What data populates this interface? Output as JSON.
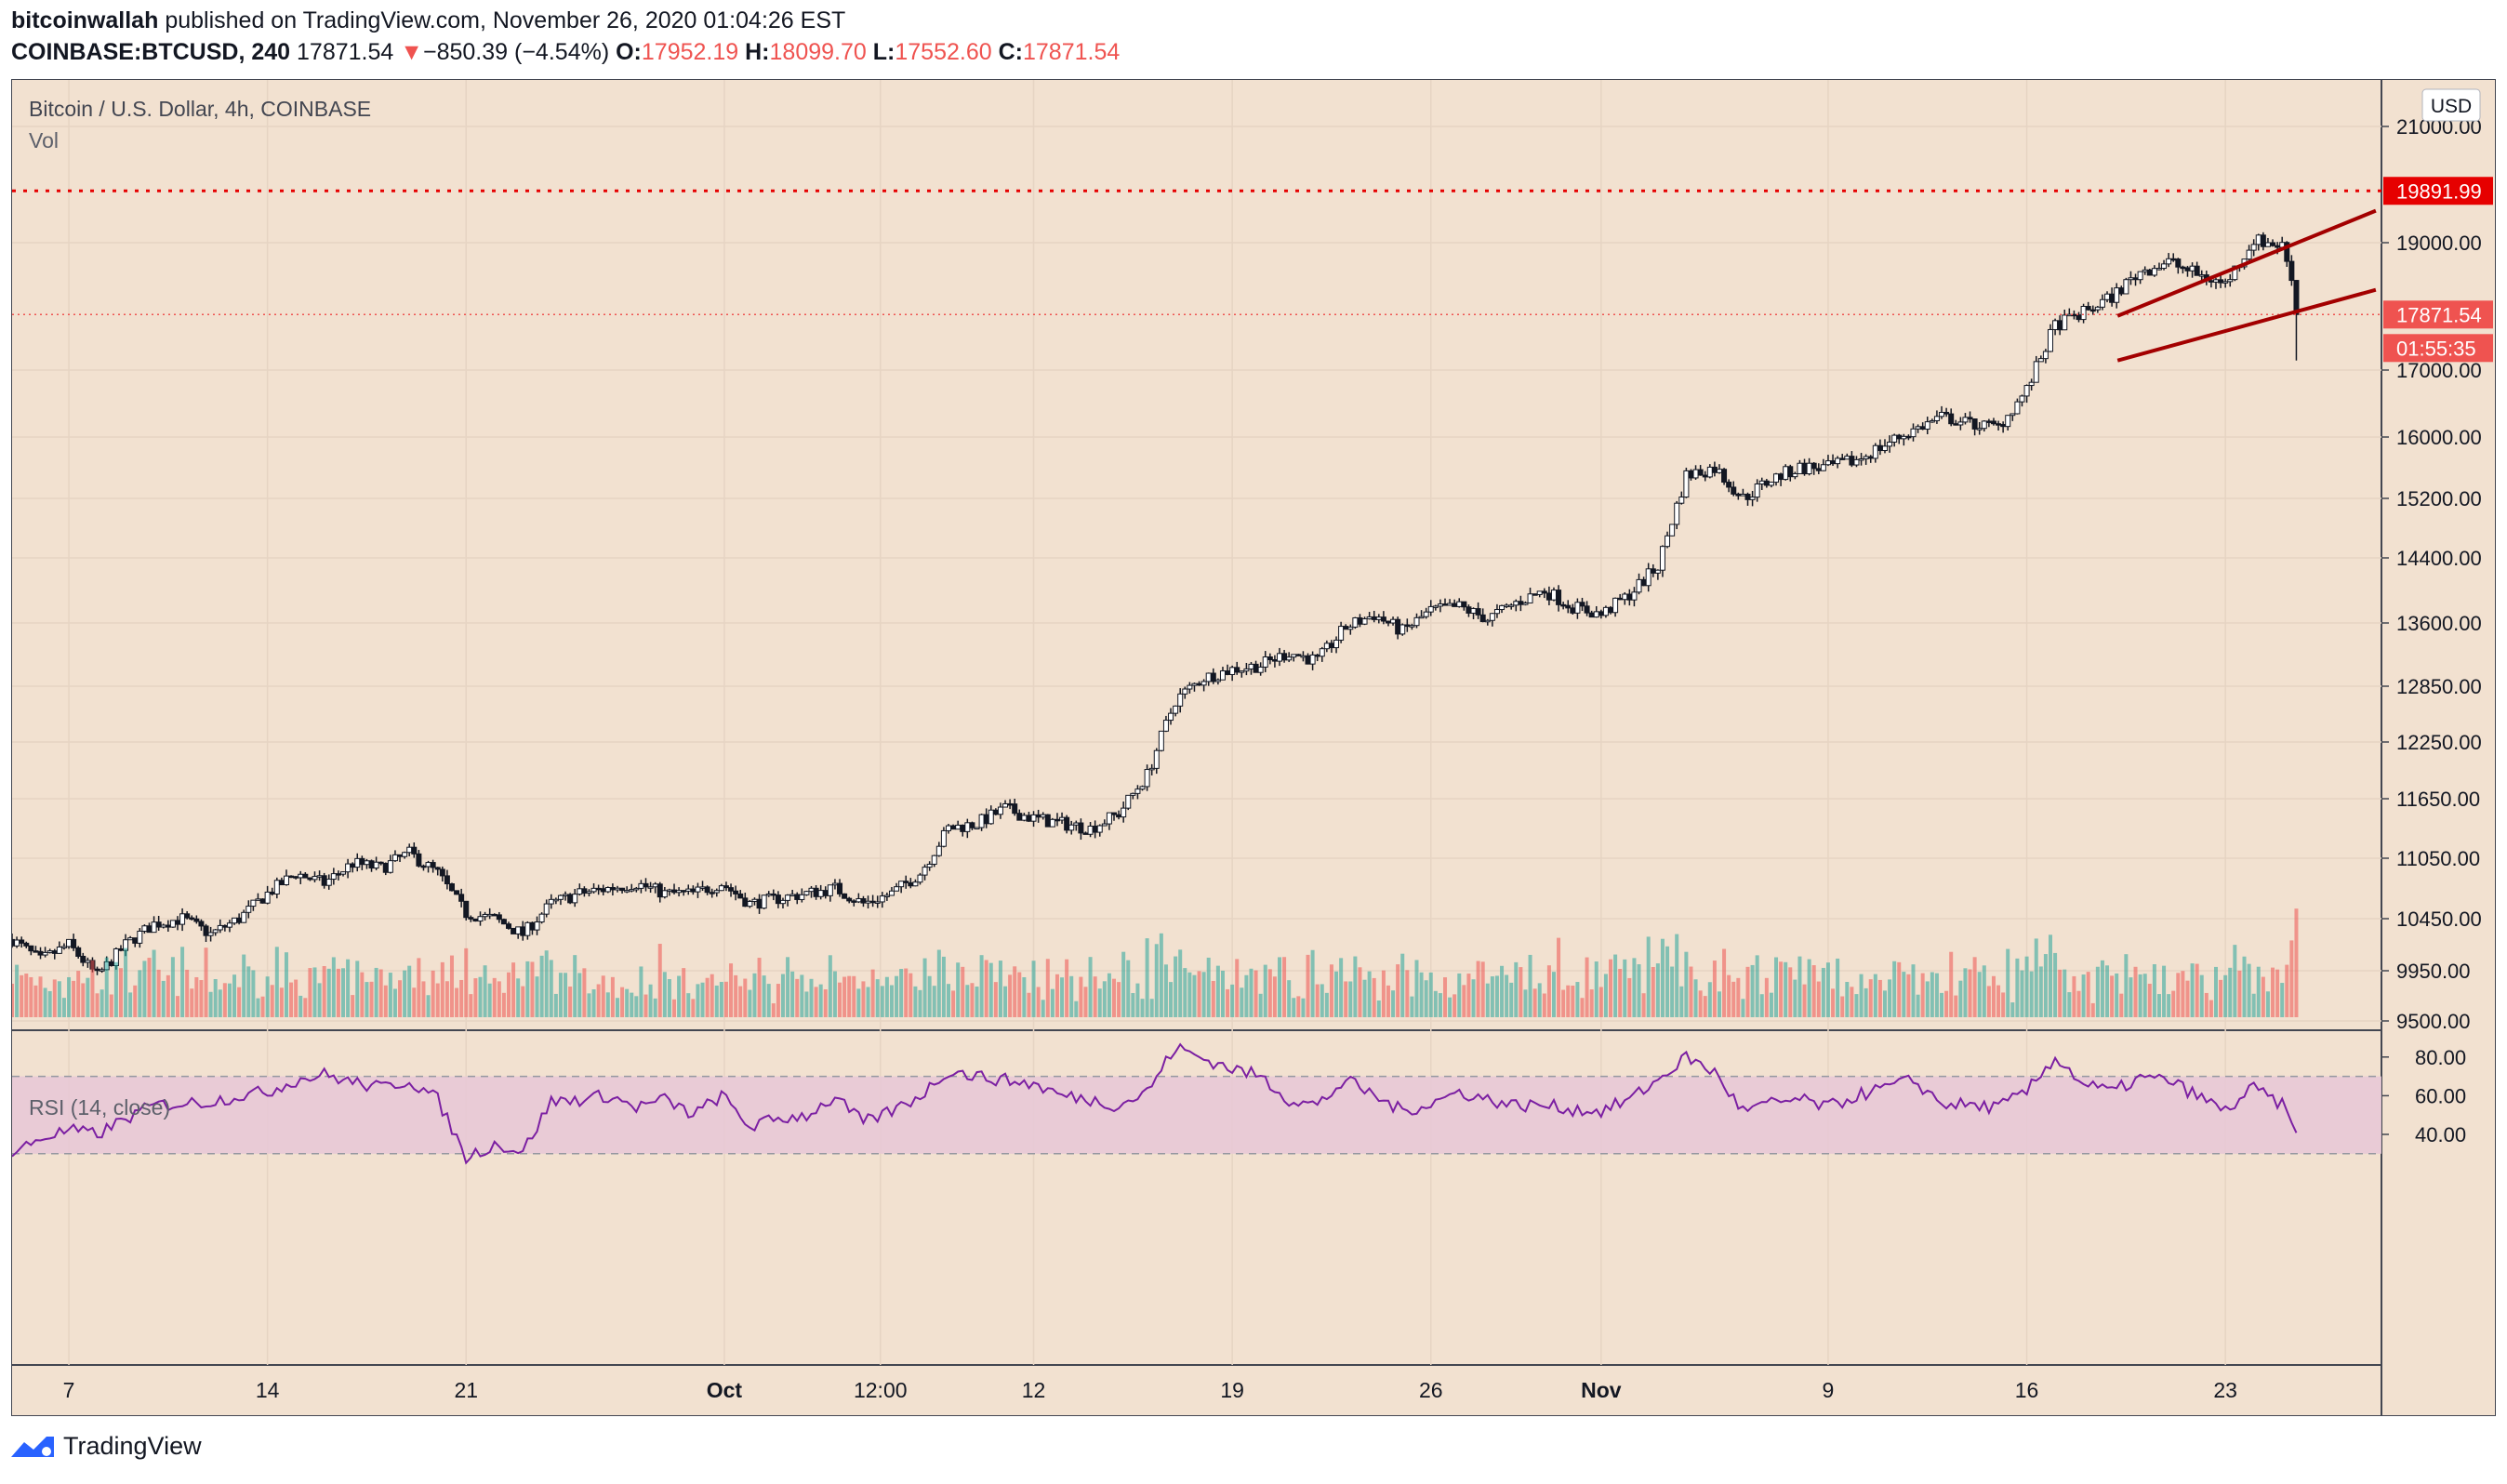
{
  "header": {
    "author": "bitcoinwallah",
    "published_text": "published on TradingView.com, November 26, 2020 01:04:26 EST",
    "symbol": "COINBASE:BTCUSD, 240",
    "last": "17871.54",
    "change_arrow": "▼",
    "change": "−850.39 (−4.54%)",
    "o_label": "O:",
    "o": "17952.19",
    "h_label": "H:",
    "h": "18099.70",
    "l_label": "L:",
    "l": "17552.60",
    "c_label": "C:",
    "c": "17871.54"
  },
  "legend": {
    "title": "Bitcoin / U.S. Dollar, 4h, COINBASE",
    "vol": "Vol",
    "rsi": "RSI (14, close)"
  },
  "footer": {
    "brand": "TradingView",
    "logo_icon": "tradingview-logo-icon"
  },
  "colors": {
    "background": "#f2e1d0",
    "up": "#26a69a",
    "down": "#ef5350",
    "candle": "#131722",
    "resistance": "#e60000",
    "channel": "#a30000",
    "rsi_line": "#7b1fa2",
    "rsi_band": "#e8c9d6"
  },
  "chart_data": {
    "type": "candlestick",
    "currency": "USD",
    "price_ticks": [
      21000,
      19000,
      17000,
      16000,
      15200,
      14400,
      13600,
      12850,
      12250,
      11650,
      11050,
      10450,
      9950,
      9500
    ],
    "price_tick_labels": [
      "21000.00",
      "19000.00",
      "17000.00",
      "16000.00",
      "15200.00",
      "14400.00",
      "13600.00",
      "12850.00",
      "12250.00",
      "11650.00",
      "11050.00",
      "10450.00",
      "9950.00",
      "9500.00"
    ],
    "resistance_level": 19891.99,
    "resistance_label": "19891.99",
    "last_price_label": "17871.54",
    "last_price": 17871.54,
    "countdown": "01:55:35",
    "x_tick_labels": [
      "7",
      "14",
      "21",
      "Oct",
      "12:00",
      "12",
      "19",
      "26",
      "Nov",
      "9",
      "16",
      "23"
    ],
    "x_tick_days": [
      7,
      14,
      21,
      30.1,
      35.6,
      41,
      48,
      55,
      61,
      69,
      76,
      83
    ],
    "date_range": [
      "2020-09-05",
      "2020-11-26"
    ],
    "price_path": [
      [
        5,
        10250
      ],
      [
        6,
        10050
      ],
      [
        7,
        10200
      ],
      [
        8,
        9900
      ],
      [
        9,
        10200
      ],
      [
        10,
        10400
      ],
      [
        11,
        10450
      ],
      [
        12,
        10300
      ],
      [
        13,
        10450
      ],
      [
        14,
        10700
      ],
      [
        15,
        10900
      ],
      [
        16,
        10800
      ],
      [
        17,
        11000
      ],
      [
        18,
        10950
      ],
      [
        19,
        11100
      ],
      [
        20,
        10900
      ],
      [
        21,
        10500
      ],
      [
        22,
        10450
      ],
      [
        23,
        10300
      ],
      [
        24,
        10600
      ],
      [
        25,
        10700
      ],
      [
        26,
        10750
      ],
      [
        27,
        10800
      ],
      [
        28,
        10700
      ],
      [
        29,
        10700
      ],
      [
        30,
        10800
      ],
      [
        31,
        10600
      ],
      [
        32,
        10650
      ],
      [
        33,
        10700
      ],
      [
        34,
        10750
      ],
      [
        35,
        10600
      ],
      [
        36,
        10700
      ],
      [
        37,
        10900
      ],
      [
        38,
        11350
      ],
      [
        39,
        11400
      ],
      [
        40,
        11550
      ],
      [
        41,
        11450
      ],
      [
        42,
        11400
      ],
      [
        43,
        11350
      ],
      [
        44,
        11500
      ],
      [
        45,
        11900
      ],
      [
        46,
        12700
      ],
      [
        47,
        12950
      ],
      [
        48,
        13050
      ],
      [
        49,
        13100
      ],
      [
        50,
        13250
      ],
      [
        51,
        13150
      ],
      [
        52,
        13550
      ],
      [
        53,
        13700
      ],
      [
        54,
        13500
      ],
      [
        55,
        13750
      ],
      [
        56,
        13800
      ],
      [
        57,
        13650
      ],
      [
        58,
        13850
      ],
      [
        59,
        14000
      ],
      [
        60,
        13800
      ],
      [
        61,
        13700
      ],
      [
        62,
        13950
      ],
      [
        63,
        14300
      ],
      [
        64,
        15500
      ],
      [
        65,
        15600
      ],
      [
        66,
        15200
      ],
      [
        67,
        15450
      ],
      [
        68,
        15600
      ],
      [
        69,
        15600
      ],
      [
        70,
        15700
      ],
      [
        71,
        15900
      ],
      [
        72,
        16100
      ],
      [
        73,
        16300
      ],
      [
        74,
        16200
      ],
      [
        75,
        16150
      ],
      [
        76,
        16700
      ],
      [
        77,
        17700
      ],
      [
        78,
        17900
      ],
      [
        79,
        18150
      ],
      [
        80,
        18550
      ],
      [
        81,
        18700
      ],
      [
        82,
        18500
      ],
      [
        83,
        18350
      ],
      [
        84,
        19050
      ],
      [
        85,
        18950
      ],
      [
        85.4,
        18400
      ],
      [
        85.6,
        17871.54
      ]
    ],
    "rsi": {
      "levels": [
        30,
        70
      ],
      "ticks": [
        80,
        60,
        40
      ],
      "tick_labels": [
        "80.00",
        "60.00",
        "40.00"
      ],
      "path": [
        [
          5,
          30
        ],
        [
          6,
          38
        ],
        [
          7,
          42
        ],
        [
          8,
          40
        ],
        [
          9,
          48
        ],
        [
          10,
          55
        ],
        [
          11,
          56
        ],
        [
          12,
          57
        ],
        [
          13,
          60
        ],
        [
          14,
          62
        ],
        [
          15,
          68
        ],
        [
          16,
          71
        ],
        [
          17,
          67
        ],
        [
          18,
          64
        ],
        [
          19,
          68
        ],
        [
          20,
          58
        ],
        [
          21,
          28
        ],
        [
          22,
          35
        ],
        [
          23,
          31
        ],
        [
          24,
          57
        ],
        [
          25,
          58
        ],
        [
          26,
          60
        ],
        [
          27,
          54
        ],
        [
          28,
          58
        ],
        [
          29,
          50
        ],
        [
          30,
          60
        ],
        [
          31,
          44
        ],
        [
          32,
          48
        ],
        [
          33,
          50
        ],
        [
          34,
          59
        ],
        [
          35,
          46
        ],
        [
          36,
          52
        ],
        [
          37,
          60
        ],
        [
          38,
          73
        ],
        [
          39,
          70
        ],
        [
          40,
          68
        ],
        [
          41,
          66
        ],
        [
          42,
          60
        ],
        [
          43,
          58
        ],
        [
          44,
          55
        ],
        [
          45,
          62
        ],
        [
          46,
          85
        ],
        [
          47,
          79
        ],
        [
          48,
          74
        ],
        [
          49,
          70
        ],
        [
          50,
          58
        ],
        [
          51,
          55
        ],
        [
          52,
          68
        ],
        [
          53,
          60
        ],
        [
          54,
          52
        ],
        [
          55,
          56
        ],
        [
          56,
          62
        ],
        [
          57,
          58
        ],
        [
          58,
          55
        ],
        [
          59,
          55
        ],
        [
          60,
          53
        ],
        [
          61,
          52
        ],
        [
          62,
          58
        ],
        [
          63,
          68
        ],
        [
          64,
          80
        ],
        [
          65,
          72
        ],
        [
          66,
          52
        ],
        [
          67,
          56
        ],
        [
          68,
          58
        ],
        [
          69,
          54
        ],
        [
          70,
          60
        ],
        [
          71,
          64
        ],
        [
          72,
          68
        ],
        [
          73,
          56
        ],
        [
          74,
          55
        ],
        [
          75,
          54
        ],
        [
          76,
          62
        ],
        [
          77,
          80
        ],
        [
          78,
          66
        ],
        [
          79,
          62
        ],
        [
          80,
          69
        ],
        [
          81,
          68
        ],
        [
          82,
          60
        ],
        [
          83,
          52
        ],
        [
          84,
          64
        ],
        [
          85,
          55
        ],
        [
          85.6,
          38
        ]
      ]
    },
    "channel": {
      "upper": [
        [
          79.2,
          17850
        ],
        [
          88.3,
          19550
        ]
      ],
      "lower": [
        [
          79.2,
          17150
        ],
        [
          88.3,
          18260
        ]
      ]
    }
  }
}
